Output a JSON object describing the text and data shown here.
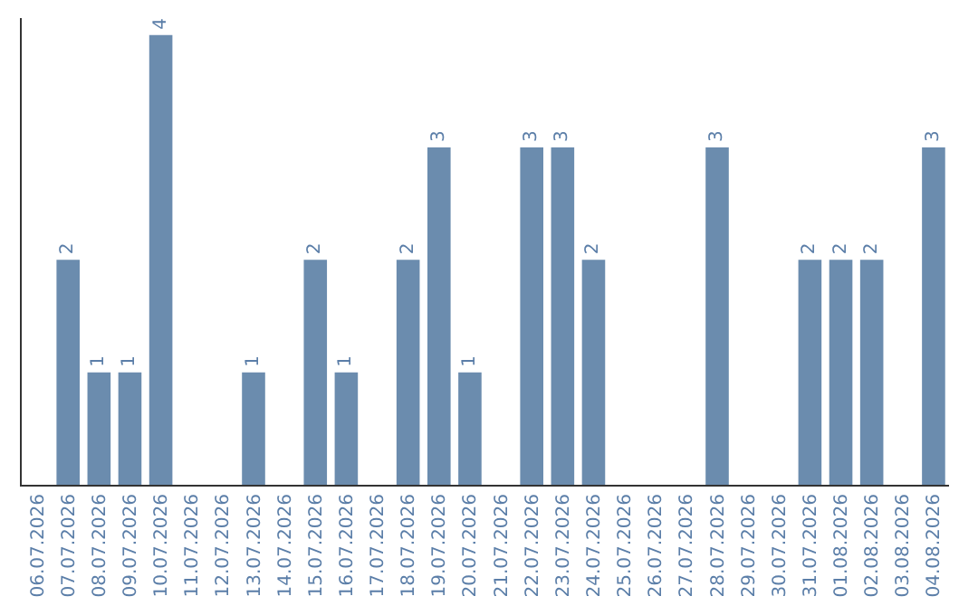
{
  "chart_data": {
    "type": "bar",
    "categories": [
      "06.07.2026",
      "07.07.2026",
      "08.07.2026",
      "09.07.2026",
      "10.07.2026",
      "11.07.2026",
      "12.07.2026",
      "13.07.2026",
      "14.07.2026",
      "15.07.2026",
      "16.07.2026",
      "17.07.2026",
      "18.07.2026",
      "19.07.2026",
      "20.07.2026",
      "21.07.2026",
      "22.07.2026",
      "23.07.2026",
      "24.07.2026",
      "25.07.2026",
      "26.07.2026",
      "27.07.2026",
      "28.07.2026",
      "29.07.2026",
      "30.07.2026",
      "31.07.2026",
      "01.08.2026",
      "02.08.2026",
      "03.08.2026",
      "04.08.2026"
    ],
    "values": [
      0,
      2,
      1,
      1,
      4,
      0,
      0,
      1,
      0,
      2,
      1,
      0,
      2,
      3,
      1,
      0,
      3,
      3,
      2,
      0,
      0,
      0,
      3,
      0,
      0,
      2,
      2,
      2,
      0,
      3
    ],
    "value_labels": [
      null,
      "2",
      "1",
      "1",
      "4",
      null,
      null,
      "1",
      null,
      "2",
      "1",
      null,
      "2",
      "3",
      "1",
      null,
      "3",
      "3",
      "2",
      null,
      null,
      null,
      "3",
      null,
      null,
      "2",
      "2",
      "2",
      null,
      "3"
    ],
    "color": "#6b8cae",
    "ylim": [
      0,
      4.15
    ],
    "tick_labels": "x"
  }
}
